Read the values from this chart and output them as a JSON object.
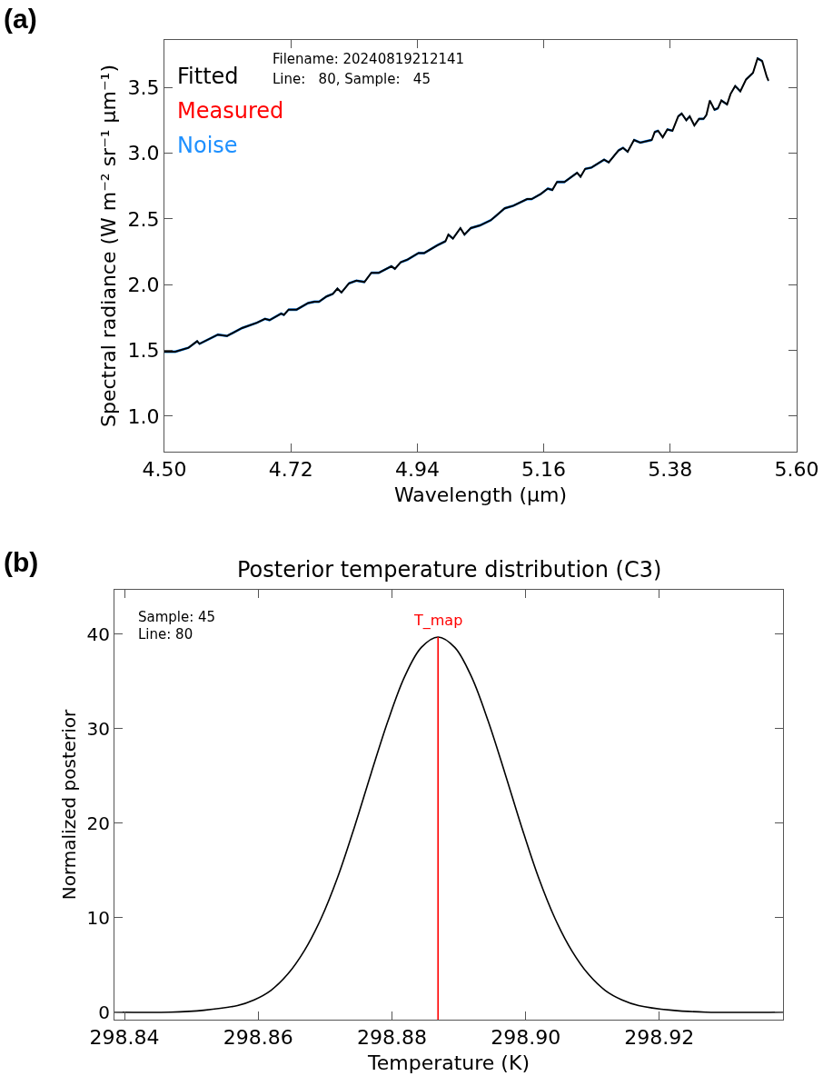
{
  "chart_data": [
    {
      "type": "line",
      "xlabel": "Wavelength (μm)",
      "ylabel": "Spectral radiance (W m⁻² sr⁻¹ μm⁻¹)",
      "annotations": [
        "(a)",
        "Filename: 20240819212141",
        "Line:   80, Sample:   45"
      ],
      "x": [
        4.5,
        4.519,
        4.542,
        4.557,
        4.561,
        4.593,
        4.609,
        4.635,
        4.661,
        4.675,
        4.683,
        4.703,
        4.708,
        4.716,
        4.73,
        4.75,
        4.761,
        4.769,
        4.782,
        4.793,
        4.801,
        4.808,
        4.821,
        4.834,
        4.848,
        4.86,
        4.873,
        4.895,
        4.901,
        4.911,
        4.923,
        4.942,
        4.952,
        4.975,
        4.989,
        4.994,
        5.002,
        5.015,
        5.022,
        5.033,
        5.049,
        5.068,
        5.076,
        5.092,
        5.107,
        5.131,
        5.139,
        5.155,
        5.167,
        5.175,
        5.183,
        5.196,
        5.218,
        5.224,
        5.232,
        5.243,
        5.265,
        5.273,
        5.29,
        5.298,
        5.306,
        5.317,
        5.328,
        5.348,
        5.353,
        5.359,
        5.367,
        5.375,
        5.384,
        5.394,
        5.4,
        5.408,
        5.414,
        5.422,
        5.43,
        5.438,
        5.443,
        5.449,
        5.457,
        5.463,
        5.469,
        5.479,
        5.485,
        5.493,
        5.502,
        5.512,
        5.524,
        5.532,
        5.54,
        5.548,
        5.551
      ],
      "series": [
        {
          "name": "Noise",
          "color": "#1e90ff",
          "values": [
            null,
            null,
            null,
            null,
            null,
            null,
            null,
            null,
            null,
            null,
            null,
            null,
            null,
            null,
            null,
            null,
            null,
            null,
            null,
            null,
            null,
            null,
            null,
            null,
            null,
            null,
            null,
            null,
            null,
            null,
            null,
            null,
            null,
            null,
            null,
            null,
            null,
            null,
            null,
            null,
            null,
            null,
            null,
            null,
            null,
            null,
            null,
            null,
            null,
            null,
            null,
            null,
            null,
            null,
            null,
            null,
            null,
            null,
            null,
            null,
            null,
            null,
            null,
            null,
            null,
            null,
            null,
            null,
            null,
            null,
            null,
            null,
            null,
            null,
            null,
            null,
            null,
            null,
            null,
            null,
            null,
            null,
            null,
            null,
            null,
            null,
            null,
            null,
            null,
            null,
            null
          ],
          "lower": [
            1.48,
            1.48,
            1.51,
            1.56,
            1.54,
            1.61,
            1.6,
            1.66,
            1.7,
            1.73,
            1.72,
            1.77,
            1.76,
            1.8,
            1.8,
            1.85,
            1.86,
            1.86,
            1.9,
            1.92,
            1.96,
            1.93,
            2.0,
            2.02,
            2.01,
            2.08,
            2.08,
            2.13,
            2.11,
            2.16,
            2.18,
            2.23,
            2.23,
            2.29,
            2.32,
            2.37,
            2.34,
            2.42,
            2.37,
            2.42,
            2.44,
            2.48,
            2.51,
            2.57,
            2.59,
            2.64,
            2.64,
            2.68,
            2.72,
            2.71,
            2.77,
            2.77,
            2.84,
            2.81,
            2.87,
            2.88,
            2.94,
            2.92,
            3.01,
            3.03,
            3.0,
            3.09,
            3.07,
            3.09,
            3.15,
            3.16,
            3.11,
            3.17,
            3.16,
            3.27,
            3.29,
            3.24,
            3.27,
            3.2,
            3.25,
            3.25,
            3.28,
            3.39,
            3.32,
            3.33,
            3.39,
            3.36,
            3.44,
            3.5,
            3.46,
            3.55,
            3.6,
            3.71,
            3.69,
            3.57,
            3.54
          ],
          "upper": [
            1.5,
            1.5,
            1.53,
            1.58,
            1.56,
            1.63,
            1.62,
            1.68,
            1.72,
            1.75,
            1.74,
            1.79,
            1.78,
            1.82,
            1.82,
            1.87,
            1.88,
            1.88,
            1.92,
            1.94,
            1.98,
            1.95,
            2.02,
            2.04,
            2.03,
            2.1,
            2.1,
            2.15,
            2.13,
            2.18,
            2.2,
            2.25,
            2.25,
            2.31,
            2.34,
            2.39,
            2.36,
            2.44,
            2.39,
            2.44,
            2.46,
            2.5,
            2.53,
            2.59,
            2.61,
            2.66,
            2.66,
            2.7,
            2.74,
            2.73,
            2.79,
            2.79,
            2.86,
            2.83,
            2.89,
            2.9,
            2.96,
            2.94,
            3.03,
            3.05,
            3.02,
            3.11,
            3.09,
            3.11,
            3.17,
            3.18,
            3.13,
            3.19,
            3.18,
            3.29,
            3.31,
            3.26,
            3.29,
            3.22,
            3.27,
            3.27,
            3.3,
            3.41,
            3.34,
            3.35,
            3.41,
            3.38,
            3.46,
            3.52,
            3.48,
            3.57,
            3.62,
            3.73,
            3.71,
            3.59,
            3.56
          ]
        },
        {
          "name": "Measured",
          "color": "#ff0000",
          "values": [
            null,
            null,
            null,
            null,
            null,
            null,
            null,
            null,
            null,
            null,
            null,
            null,
            null,
            null,
            null,
            null,
            null,
            null,
            null,
            null,
            null,
            null,
            null,
            null,
            null,
            null,
            null,
            null,
            null,
            null,
            null,
            null,
            null,
            null,
            null,
            null,
            null,
            null,
            null,
            null,
            null,
            null,
            null,
            null,
            null,
            null,
            null,
            null,
            null,
            null,
            null,
            null,
            null,
            null,
            null,
            null,
            null,
            null,
            null,
            null,
            null,
            null,
            null,
            null,
            null,
            null,
            null,
            null,
            null,
            null,
            null,
            null,
            null,
            null,
            null,
            null,
            null,
            null,
            null,
            null,
            null,
            null,
            null,
            null,
            null,
            null,
            null,
            null,
            null,
            null,
            null
          ]
        },
        {
          "name": "Fitted",
          "color": "#000000",
          "values": [
            1.49,
            1.49,
            1.52,
            1.57,
            1.55,
            1.62,
            1.61,
            1.67,
            1.71,
            1.74,
            1.73,
            1.78,
            1.77,
            1.81,
            1.81,
            1.86,
            1.87,
            1.87,
            1.91,
            1.93,
            1.97,
            1.94,
            2.01,
            2.03,
            2.02,
            2.09,
            2.09,
            2.14,
            2.12,
            2.17,
            2.19,
            2.24,
            2.24,
            2.3,
            2.33,
            2.38,
            2.35,
            2.43,
            2.38,
            2.43,
            2.45,
            2.49,
            2.52,
            2.58,
            2.6,
            2.65,
            2.65,
            2.69,
            2.73,
            2.72,
            2.78,
            2.78,
            2.85,
            2.82,
            2.88,
            2.89,
            2.95,
            2.93,
            3.02,
            3.04,
            3.01,
            3.1,
            3.08,
            3.1,
            3.16,
            3.17,
            3.12,
            3.18,
            3.17,
            3.28,
            3.3,
            3.25,
            3.28,
            3.21,
            3.26,
            3.26,
            3.29,
            3.4,
            3.33,
            3.34,
            3.4,
            3.37,
            3.45,
            3.51,
            3.47,
            3.56,
            3.61,
            3.72,
            3.7,
            3.58,
            3.55
          ]
        }
      ],
      "xlim": [
        4.5,
        5.6
      ],
      "ylim": [
        0.73,
        3.86
      ],
      "xticks": [
        {
          "value": 4.5,
          "label": "4.50"
        },
        4.72,
        4.94,
        5.16,
        5.38,
        {
          "value": 5.6,
          "label": "5.60"
        }
      ],
      "yticks": [
        {
          "value": 1.0,
          "label": "1.0"
        },
        1.5,
        {
          "value": 2.0,
          "label": "2.0"
        },
        2.5,
        {
          "value": 3.0,
          "label": "3.0"
        },
        3.5
      ],
      "legend": "top left"
    },
    {
      "type": "line",
      "title": "Posterior temperature distribution (C3)",
      "xlabel": "Temperature (K)",
      "ylabel": "Normalized posterior",
      "annotations": [
        "(b)",
        "Sample: 45",
        "Line: 80"
      ],
      "x": [
        298.8385,
        298.8469,
        298.8519,
        298.8569,
        298.8594,
        298.8619,
        298.8644,
        298.8669,
        298.8694,
        298.8719,
        298.8744,
        298.8769,
        298.8794,
        298.8819,
        298.8844,
        298.8869,
        298.8894,
        298.8919,
        298.8944,
        298.8969,
        298.8994,
        298.9019,
        298.9044,
        298.9069,
        298.9094,
        298.9119,
        298.9144,
        298.9169,
        298.9219,
        298.9269,
        298.9385
      ],
      "series": [
        {
          "color": "#000000",
          "values": [
            0,
            0,
            0.2,
            0.7,
            1.3,
            2.3,
            4.0,
            6.5,
            9.9,
            14.3,
            19.6,
            25.3,
            30.8,
            35.5,
            38.6,
            39.7,
            38.6,
            35.5,
            30.8,
            25.3,
            19.6,
            14.3,
            9.9,
            6.5,
            4.0,
            2.3,
            1.3,
            0.7,
            0.2,
            0,
            0
          ]
        }
      ],
      "ref_lines": [
        {
          "axis": "x",
          "value": 298.8869,
          "label": "T_map",
          "color": "#ff0000"
        }
      ],
      "xlim": [
        298.8385,
        298.9385
      ],
      "ylim": [
        -0.8,
        44.7
      ],
      "xticks": [
        298.84,
        298.86,
        298.88,
        {
          "value": 298.9,
          "label": "298.90"
        },
        298.92
      ],
      "yticks": [
        0,
        10,
        20,
        30,
        40
      ]
    }
  ]
}
